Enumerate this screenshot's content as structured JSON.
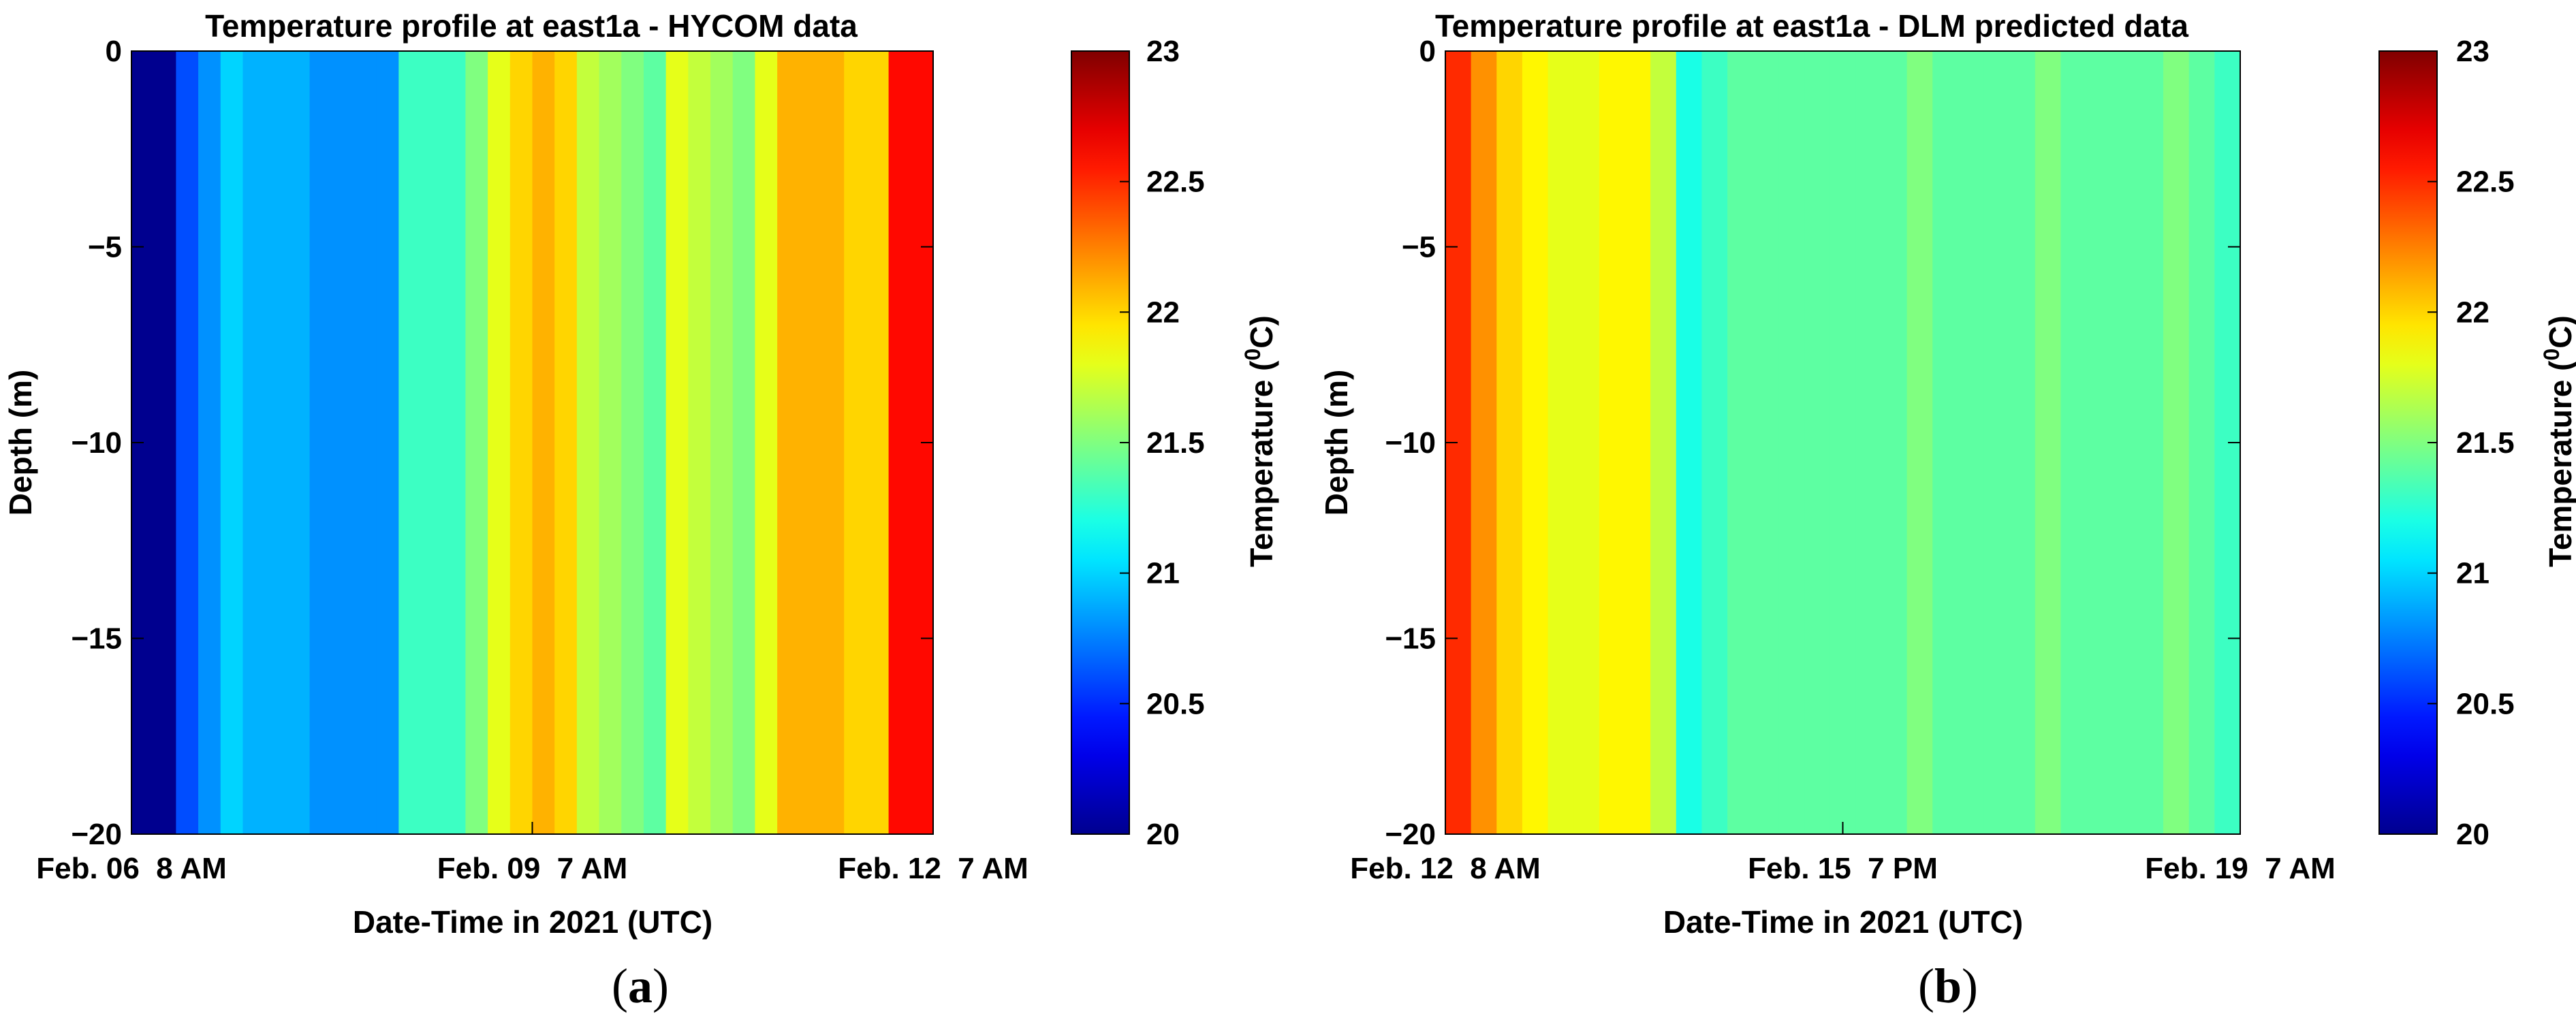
{
  "figure": {
    "colormap": [
      "#00008f",
      "#0000ff",
      "#00ffff",
      "#ffff00",
      "#ff0000",
      "#800000"
    ],
    "colormap_name": "jet",
    "panels": [
      {
        "id": "a",
        "caption_open": "(",
        "caption_letter": "a",
        "caption_close": ")",
        "chart_key": 0
      },
      {
        "id": "b",
        "caption_open": "(",
        "caption_letter": "b",
        "caption_close": ")",
        "chart_key": 1
      }
    ]
  },
  "chart_data": [
    {
      "type": "heatmap",
      "title": "Temperature profile at east1a - HYCOM data",
      "xlabel": "Date-Time in 2021 (UTC)",
      "ylabel": "Depth (m)",
      "ylim": [
        -20,
        0
      ],
      "yticks": [
        0,
        -5,
        -10,
        -15,
        -20
      ],
      "ytick_labels": [
        "0",
        "−5",
        "−10",
        "−15",
        "−20"
      ],
      "xlim": [
        0,
        1
      ],
      "x_tick_labels": [
        {
          "x": 0.0,
          "label": "Feb. 06  8 AM"
        },
        {
          "x": 0.5,
          "label": "Feb. 09  7 AM"
        },
        {
          "x": 1.0,
          "label": "Feb. 12  7 AM"
        }
      ],
      "column_boundaries": [
        0,
        0.05,
        0.11,
        0.125,
        0.14,
        0.16,
        0.18,
        0.2,
        0.22,
        0.24,
        0.26,
        0.28,
        0.3,
        0.33,
        0.37,
        0.45,
        0.5,
        0.55,
        0.6,
        0.63,
        0.67,
        0.7,
        0.735,
        0.75,
        0.77,
        0.8,
        0.83,
        0.86,
        0.89,
        0.92,
        0.955,
        1.0
      ],
      "temperatures": [
        20.0,
        20.0,
        20.6,
        20.8,
        21.0,
        20.9,
        20.9,
        20.9,
        20.8,
        20.8,
        20.8,
        20.8,
        21.3,
        21.3,
        21.3,
        21.5,
        21.8,
        22.0,
        22.1,
        22.0,
        21.7,
        21.6,
        21.5,
        21.4,
        21.8,
        21.7,
        21.6,
        21.5,
        21.8,
        22.1,
        22.1,
        22.1,
        22.0,
        22.0,
        22.6,
        22.6
      ],
      "colorbar": {
        "label": "Temperature (",
        "label_superscript": "0",
        "label_end": "C)",
        "clim": [
          20,
          23
        ],
        "ticks": [
          20,
          20.5,
          21,
          21.5,
          22,
          22.5,
          23
        ],
        "tick_labels": [
          "20",
          "20.5",
          "21",
          "21.5",
          "22",
          "22.5",
          "23"
        ]
      }
    },
    {
      "type": "heatmap",
      "title": "Temperature profile at east1a - DLM predicted data",
      "xlabel": "Date-Time in 2021 (UTC)",
      "ylabel": "Depth (m)",
      "ylim": [
        -20,
        0
      ],
      "yticks": [
        0,
        -5,
        -10,
        -15,
        -20
      ],
      "ytick_labels": [
        "0",
        "−5",
        "−10",
        "−15",
        "−20"
      ],
      "xlim": [
        0,
        1
      ],
      "x_tick_labels": [
        {
          "x": 0.0,
          "label": "Feb. 12  8 AM"
        },
        {
          "x": 0.5,
          "label": "Feb. 15  7 PM"
        },
        {
          "x": 1.0,
          "label": "Feb. 19  7 AM"
        }
      ],
      "column_boundaries": [
        0,
        0.02,
        0.04,
        0.06,
        0.08,
        0.1,
        0.12,
        0.14,
        0.16,
        0.17,
        0.18,
        0.2,
        0.22,
        0.25,
        0.3,
        0.35,
        0.4,
        0.43,
        0.45,
        0.5,
        0.55,
        0.58,
        0.6,
        0.65,
        0.7,
        0.75,
        0.8,
        0.85,
        0.89,
        0.93,
        0.96,
        1.0
      ],
      "temperatures": [
        22.5,
        22.2,
        22.0,
        21.9,
        21.8,
        21.8,
        21.9,
        21.9,
        21.7,
        21.2,
        21.3,
        21.4,
        21.4,
        21.4,
        21.4,
        21.4,
        21.4,
        21.4,
        21.5,
        21.4,
        21.4,
        21.4,
        21.4,
        21.5,
        21.4,
        21.4,
        21.4,
        21.4,
        21.5,
        21.4,
        21.3
      ],
      "colorbar": {
        "label": "Temperature (",
        "label_superscript": "0",
        "label_end": "C)",
        "clim": [
          20,
          23
        ],
        "ticks": [
          20,
          20.5,
          21,
          21.5,
          22,
          22.5,
          23
        ],
        "tick_labels": [
          "20",
          "20.5",
          "21",
          "21.5",
          "22",
          "22.5",
          "23"
        ]
      }
    }
  ]
}
